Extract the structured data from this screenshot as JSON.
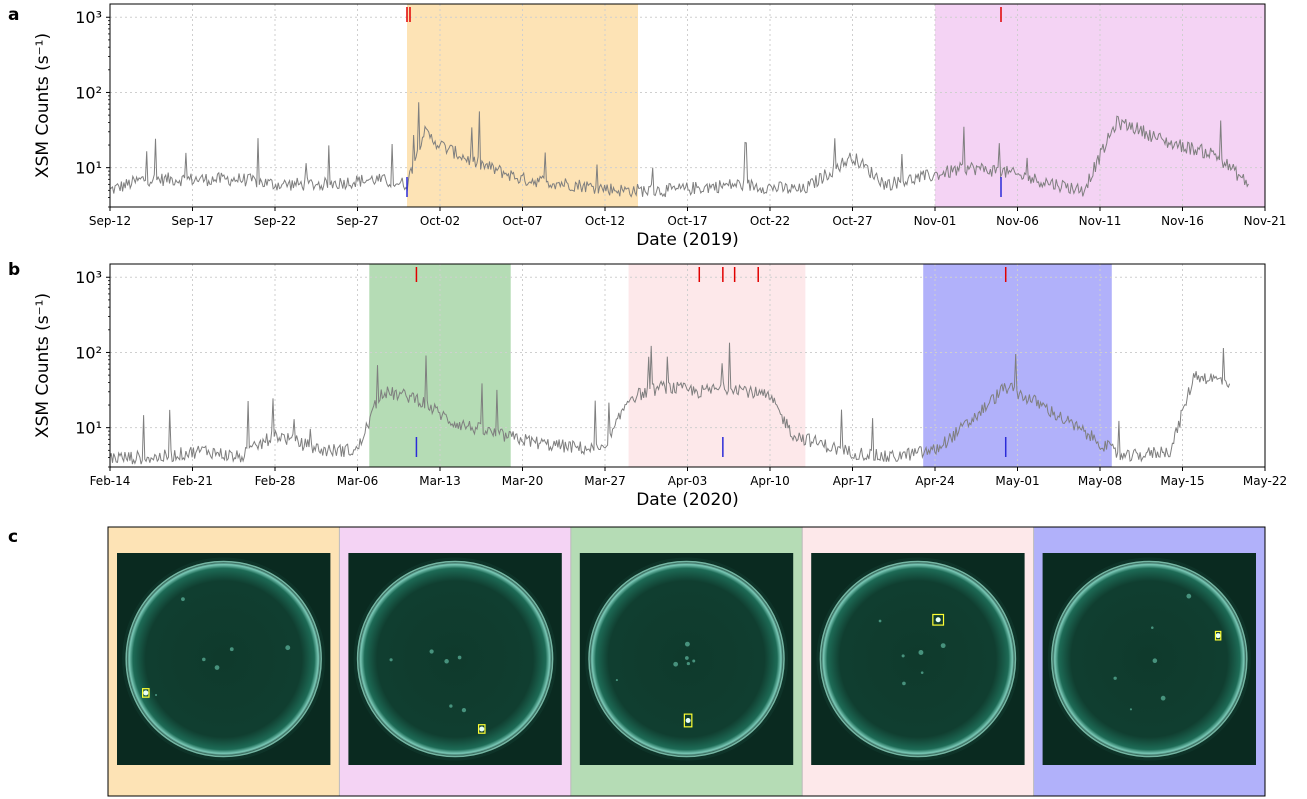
{
  "figure": {
    "panel_letters": [
      "a",
      "b",
      "c"
    ]
  },
  "chart_data": [
    {
      "panel": "a",
      "type": "line",
      "xlabel": "Date (2019)",
      "ylabel": "XSM Counts (s⁻¹)",
      "yscale": "log",
      "ylim": [
        3,
        1500
      ],
      "xlim": [
        "2019-09-12",
        "2019-11-21"
      ],
      "grid": true,
      "line_color": "#7f7f7f",
      "x_ticks": [
        "Sep-12",
        "Sep-17",
        "Sep-22",
        "Sep-27",
        "Oct-02",
        "Oct-07",
        "Oct-12",
        "Oct-17",
        "Oct-22",
        "Oct-27",
        "Nov-01",
        "Nov-06",
        "Nov-11",
        "Nov-16",
        "Nov-21"
      ],
      "y_ticks": [
        10,
        100,
        1000
      ],
      "y_tick_labels": [
        "10¹",
        "10²",
        "10³"
      ],
      "shaded_regions": [
        {
          "start": "2019-09-30",
          "end": "2019-10-14",
          "color": "#fde3b5"
        },
        {
          "start": "2019-11-01",
          "end": "2019-11-21",
          "color": "#f4d3f4"
        }
      ],
      "markers_red": [
        "2019-09-30",
        "2019-09-30",
        "2019-11-05"
      ],
      "markers_blue": [
        "2019-09-30",
        "2019-11-05"
      ],
      "x": [
        "2019-09-12",
        "2019-09-14",
        "2019-09-17",
        "2019-09-20",
        "2019-09-22",
        "2019-09-25",
        "2019-09-28",
        "2019-09-30",
        "2019-10-01",
        "2019-10-02",
        "2019-10-04",
        "2019-10-07",
        "2019-10-10",
        "2019-10-13",
        "2019-10-16",
        "2019-10-20",
        "2019-10-24",
        "2019-10-27",
        "2019-10-29",
        "2019-11-01",
        "2019-11-03",
        "2019-11-05",
        "2019-11-07",
        "2019-11-10",
        "2019-11-12",
        "2019-11-13",
        "2019-11-15",
        "2019-11-18",
        "2019-11-20"
      ],
      "values": [
        5,
        7,
        7,
        7,
        6,
        6,
        7,
        6,
        30,
        20,
        12,
        7,
        6,
        5,
        5,
        6,
        5,
        14,
        6,
        8,
        10,
        9,
        7,
        5,
        40,
        35,
        22,
        15,
        6
      ]
    },
    {
      "panel": "b",
      "type": "line",
      "xlabel": "Date (2020)",
      "ylabel": "XSM Counts (s⁻¹)",
      "yscale": "log",
      "ylim": [
        3,
        1500
      ],
      "xlim": [
        "2020-02-14",
        "2020-05-22"
      ],
      "grid": true,
      "line_color": "#7f7f7f",
      "x_ticks": [
        "Feb-14",
        "Feb-21",
        "Feb-28",
        "Mar-06",
        "Mar-13",
        "Mar-20",
        "Mar-27",
        "Apr-03",
        "Apr-10",
        "Apr-17",
        "Apr-24",
        "May-01",
        "May-08",
        "May-15",
        "May-22"
      ],
      "y_ticks": [
        10,
        100,
        1000
      ],
      "y_tick_labels": [
        "10¹",
        "10²",
        "10³"
      ],
      "shaded_regions": [
        {
          "start": "2020-03-07",
          "end": "2020-03-19",
          "color": "#b5dcb5"
        },
        {
          "start": "2020-03-29",
          "end": "2020-04-13",
          "color": "#fde8ea"
        },
        {
          "start": "2020-04-23",
          "end": "2020-05-09",
          "color": "#b1b1fa"
        }
      ],
      "markers_red": [
        "2020-03-11",
        "2020-04-04",
        "2020-04-06",
        "2020-04-07",
        "2020-04-09",
        "2020-04-30"
      ],
      "markers_blue": [
        "2020-03-11",
        "2020-04-06",
        "2020-04-30"
      ],
      "x": [
        "2020-02-14",
        "2020-02-18",
        "2020-02-22",
        "2020-02-25",
        "2020-02-28",
        "2020-03-03",
        "2020-03-06",
        "2020-03-08",
        "2020-03-11",
        "2020-03-14",
        "2020-03-18",
        "2020-03-22",
        "2020-03-27",
        "2020-03-29",
        "2020-04-01",
        "2020-04-04",
        "2020-04-07",
        "2020-04-10",
        "2020-04-12",
        "2020-04-16",
        "2020-04-20",
        "2020-04-24",
        "2020-04-27",
        "2020-04-30",
        "2020-05-03",
        "2020-05-07",
        "2020-05-10",
        "2020-05-14",
        "2020-05-16",
        "2020-05-19"
      ],
      "values": [
        4,
        4,
        5,
        4,
        8,
        5,
        5,
        30,
        25,
        12,
        8,
        6,
        5,
        25,
        35,
        30,
        35,
        25,
        8,
        5,
        4,
        5,
        12,
        35,
        20,
        8,
        4,
        5,
        50,
        40
      ]
    }
  ],
  "images_panel": {
    "panel": "c",
    "frames": [
      {
        "bg": "#fde3b5",
        "box_x": 0.12,
        "box_y": 0.64,
        "box_w": 0.03,
        "box_h": 0.04
      },
      {
        "bg": "#f4d3f4",
        "box_x": 0.61,
        "box_y": 0.81,
        "box_w": 0.03,
        "box_h": 0.04
      },
      {
        "bg": "#b5dcb5",
        "box_x": 0.49,
        "box_y": 0.76,
        "box_w": 0.035,
        "box_h": 0.06
      },
      {
        "bg": "#fde8ea",
        "box_x": 0.57,
        "box_y": 0.29,
        "box_w": 0.05,
        "box_h": 0.05
      },
      {
        "bg": "#b1b1fa",
        "box_x": 0.81,
        "box_y": 0.37,
        "box_w": 0.025,
        "box_h": 0.04
      }
    ]
  }
}
